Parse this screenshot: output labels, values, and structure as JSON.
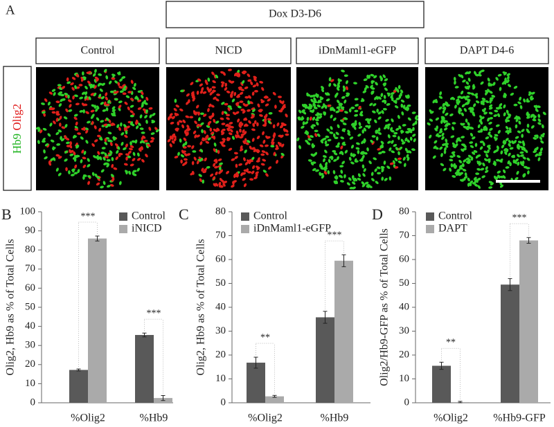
{
  "figure": {
    "panel": "A",
    "treatment": "Dox D3-D6",
    "conditions": [
      "Control",
      "NICD",
      "iDnMaml1-eGFP",
      "DAPT D4-6"
    ],
    "stain_hb9": "Hb9",
    "stain_olig2": "Olig2"
  },
  "chart_data": [
    {
      "type": "bar",
      "panel": "B",
      "y_label": "Olig2, Hb9 as % of Total Cells",
      "categories": [
        "%Olig2",
        "%Hb9"
      ],
      "series": [
        {
          "name": "Control",
          "color": "#595959",
          "values": [
            17.2,
            35.5
          ],
          "errors": [
            0.5,
            1
          ]
        },
        {
          "name": "iNICD",
          "color": "#aaaaaa",
          "values": [
            86,
            2.5
          ],
          "errors": [
            1.3,
            1.3
          ]
        }
      ],
      "significance": [
        "***",
        "***"
      ],
      "ylim": [
        0,
        100
      ],
      "yticks": [
        0,
        10,
        20,
        30,
        40,
        50,
        60,
        70,
        80,
        90,
        100
      ]
    },
    {
      "type": "bar",
      "panel": "C",
      "y_label": "Olig2, Hb9 as % of Total Cells",
      "categories": [
        "%Olig2",
        "%Hb9"
      ],
      "series": [
        {
          "name": "Control",
          "color": "#595959",
          "values": [
            16.8,
            35.8
          ],
          "errors": [
            2.3,
            2.5
          ]
        },
        {
          "name": "iDnMaml1-eGFP",
          "color": "#aaaaaa",
          "values": [
            2.7,
            59.5
          ],
          "errors": [
            0.4,
            2.5
          ]
        }
      ],
      "significance": [
        "**",
        "***"
      ],
      "ylim": [
        0,
        80
      ],
      "yticks": [
        0,
        10,
        20,
        30,
        40,
        50,
        60,
        70,
        80
      ]
    },
    {
      "type": "bar",
      "panel": "D",
      "y_label": "Olig2/Hb9-GFP as % of Total Cells",
      "categories": [
        "%Olig2",
        "%Hb9-GFP"
      ],
      "series": [
        {
          "name": "Control",
          "color": "#595959",
          "values": [
            15.5,
            49.5
          ],
          "errors": [
            1.5,
            2.5
          ]
        },
        {
          "name": "DAPT",
          "color": "#aaaaaa",
          "values": [
            0.3,
            68
          ],
          "errors": [
            0.3,
            1.2
          ]
        }
      ],
      "significance": [
        "**",
        "***"
      ],
      "ylim": [
        0,
        80
      ],
      "yticks": [
        0,
        10,
        20,
        30,
        40,
        50,
        60,
        70,
        80
      ]
    }
  ]
}
